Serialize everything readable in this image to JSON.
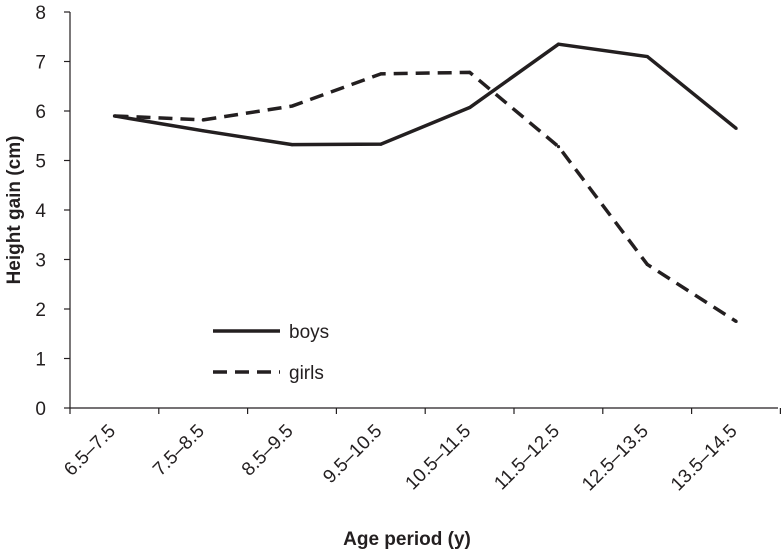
{
  "chart_data": {
    "type": "line",
    "xlabel": "Age period (y)",
    "ylabel": "Height gain (cm)",
    "categories": [
      "6.5–7.5",
      "7.5–8.5",
      "8.5–9.5",
      "9.5–10.5",
      "10.5–11.5",
      "11.5–12.5",
      "12.5–13.5",
      "13.5–14.5"
    ],
    "ylim": [
      0,
      8
    ],
    "yticks": [
      "0",
      "1",
      "2",
      "3",
      "4",
      "5",
      "6",
      "7",
      "8"
    ],
    "grid": false,
    "legend_position": "lower-left",
    "series": [
      {
        "name": "boys",
        "style": "solid",
        "color": "#231f20",
        "values": [
          5.9,
          5.6,
          5.32,
          5.33,
          6.07,
          7.35,
          7.1,
          5.65
        ]
      },
      {
        "name": "girls",
        "style": "dashed",
        "color": "#231f20",
        "values": [
          5.9,
          5.82,
          6.1,
          6.75,
          6.78,
          5.28,
          2.9,
          1.75
        ]
      }
    ]
  }
}
